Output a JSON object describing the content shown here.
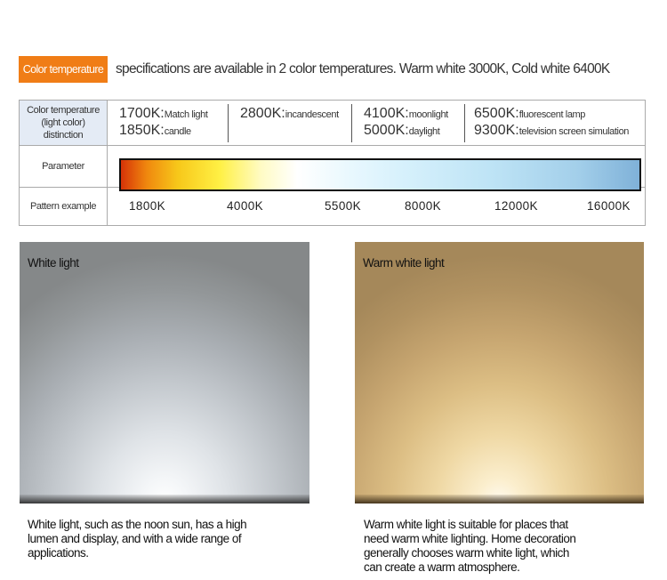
{
  "header": {
    "badge": "Color temperature",
    "text": "specifications are available in 2 color temperatures. Warm white 3000K, Cold white 6400K"
  },
  "table": {
    "row1_label_lines": [
      "Color temperature",
      "(light color)",
      "distinction"
    ],
    "groups": [
      {
        "items": [
          {
            "k": "1700K:",
            "desc": "Match light"
          },
          {
            "k": "1850K:",
            "desc": "candle"
          }
        ]
      },
      {
        "items": [
          {
            "k": "2800K:",
            "desc": "incandescent"
          }
        ]
      },
      {
        "items": [
          {
            "k": "4100K:",
            "desc": "moonlight"
          },
          {
            "k": "5000K:",
            "desc": "daylight"
          }
        ]
      },
      {
        "items": [
          {
            "k": "6500K:",
            "desc": "fluorescent lamp"
          },
          {
            "k": "9300K:",
            "desc": "television screen simulation"
          }
        ]
      }
    ],
    "row2_label": "Parameter",
    "row3_label": "Pattern example",
    "scale_values": [
      "1800K",
      "4000K",
      "5500K",
      "8000K",
      "12000K",
      "16000K"
    ]
  },
  "photos": {
    "left": {
      "label": "White light",
      "caption_lines": [
        "White light, such as the noon sun, has a high",
        "lumen and display, and with a wide range of",
        "applications."
      ]
    },
    "right": {
      "label": "Warm white light",
      "caption_lines": [
        "Warm white light is suitable for places that",
        "need warm white lighting. Home decoration",
        "generally chooses warm white light, which",
        "can create a warm atmosphere."
      ]
    }
  },
  "colors": {
    "accent": "#f07d16",
    "label_bg": "#e4ebf5",
    "border": "#aaaaaa"
  }
}
